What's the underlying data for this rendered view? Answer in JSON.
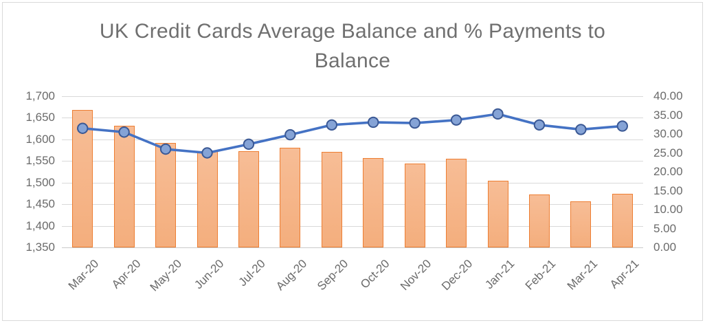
{
  "chart_data": {
    "type": "combo",
    "title": "UK Credit Cards Average Balance and % Payments to\nBalance",
    "categories": [
      "Mar-20",
      "Apr-20",
      "May-20",
      "Jun-20",
      "Jul-20",
      "Aug-20",
      "Sep-20",
      "Oct-20",
      "Nov-20",
      "Dec-20",
      "Jan-21",
      "Feb-21",
      "Mar-21",
      "Apr-21"
    ],
    "series": [
      {
        "name": "Average Balance",
        "type": "bar",
        "axis": "left",
        "values": [
          1668,
          1632,
          1592,
          1573,
          1572,
          1580,
          1571,
          1557,
          1544,
          1556,
          1504,
          1472,
          1457,
          1474
        ]
      },
      {
        "name": "% Payments to Balance",
        "type": "line",
        "axis": "right",
        "values": [
          31.5,
          30.5,
          26.0,
          25.0,
          27.3,
          29.8,
          32.4,
          33.1,
          32.9,
          33.7,
          35.3,
          32.4,
          31.2,
          32.1
        ]
      }
    ],
    "left_axis": {
      "min": 1350,
      "max": 1700,
      "step": 50,
      "labels": [
        "1,700",
        "1,650",
        "1,600",
        "1,550",
        "1,500",
        "1,450",
        "1,400",
        "1,350"
      ]
    },
    "right_axis": {
      "min": 0,
      "max": 40,
      "step": 5,
      "labels": [
        "40.00",
        "35.00",
        "30.00",
        "25.00",
        "20.00",
        "15.00",
        "10.00",
        "5.00",
        "0.00"
      ]
    },
    "grid": true,
    "legend": "none",
    "colors": {
      "bar_fill": "#F4B183",
      "bar_border": "#ED7D31",
      "line": "#4472C4",
      "marker_fill": "#85A3D6",
      "marker_border": "#3A5894",
      "gridline": "#D9D9D9",
      "text": "#6A6A6A",
      "title_text": "#6F6F6F",
      "frame_border": "#D9D9D9"
    }
  }
}
